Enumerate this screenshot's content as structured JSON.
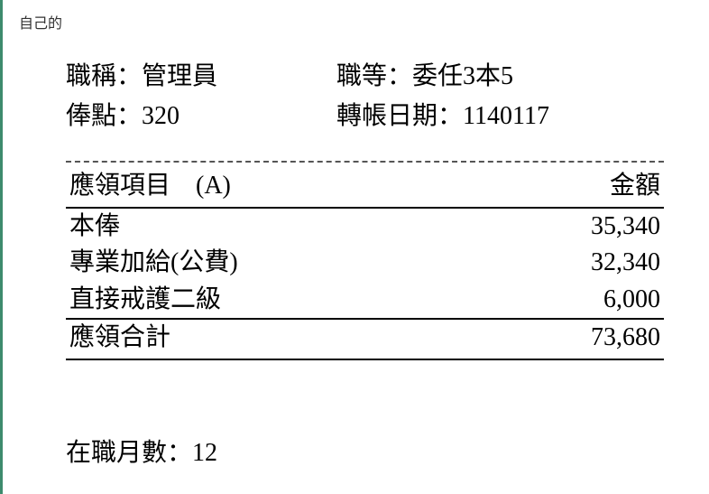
{
  "topLabel": "自己的",
  "info": {
    "jobTitleLabel": "職稱：",
    "jobTitleValue": "管理員",
    "jobGradeLabel": "職等：",
    "jobGradeValue": "委任3本5",
    "payPointLabel": "俸點：",
    "payPointValue": "320",
    "transferDateLabel": "轉帳日期：",
    "transferDateValue": "1140117"
  },
  "table": {
    "headerItemLabel": "應領項目　(A)",
    "headerAmountLabel": "金額",
    "rows": [
      {
        "label": "本俸",
        "amount": "35,340"
      },
      {
        "label": "專業加給(公費)",
        "amount": "32,340"
      },
      {
        "label": "直接戒護二級",
        "amount": "6,000"
      }
    ],
    "totalLabel": "應領合計",
    "totalAmount": "73,680"
  },
  "months": {
    "label": "在職月數：",
    "value": "12"
  },
  "style": {
    "accent_border_color": "#3d8b6d",
    "text_color": "#000000",
    "background_color": "#ffffff",
    "font_size_main": 28,
    "font_size_small": 16,
    "dash_color": "#555555"
  }
}
